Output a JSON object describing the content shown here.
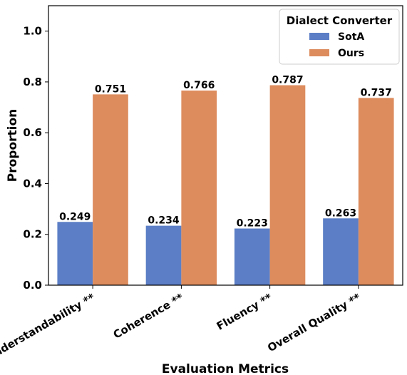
{
  "chart_data": {
    "type": "bar",
    "categories": [
      "Understandability **",
      "Coherence **",
      "Fluency **",
      "Overall Quality **"
    ],
    "series": [
      {
        "name": "SotA",
        "values": [
          0.249,
          0.234,
          0.223,
          0.263
        ],
        "color": "#5b7ec6"
      },
      {
        "name": "Ours",
        "values": [
          0.751,
          0.766,
          0.787,
          0.737
        ],
        "color": "#dd8c5e"
      }
    ],
    "value_labels": [
      [
        "0.249",
        "0.234",
        "0.223",
        "0.263"
      ],
      [
        "0.751",
        "0.766",
        "0.787",
        "0.737"
      ]
    ],
    "xlabel": "Evaluation Metrics",
    "ylabel": "Proportion",
    "ylim": [
      0,
      1.1
    ],
    "yticks": [
      "0.0",
      "0.2",
      "0.4",
      "0.6",
      "0.8",
      "1.0"
    ],
    "grid": false,
    "legend": {
      "title": "Dialect Converter",
      "placement": "top-right"
    }
  }
}
